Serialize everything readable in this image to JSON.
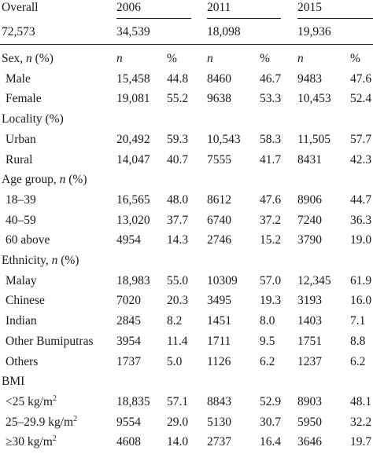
{
  "header": {
    "overall_label": "Overall",
    "overall_n": "72,573",
    "years": [
      "2006",
      "2011",
      "2015"
    ],
    "year_counts": [
      "34,539",
      "18,098",
      "19,936"
    ]
  },
  "col_heads": {
    "n": "n",
    "pct": "%"
  },
  "sections": [
    {
      "title": "Sex,",
      "title_italic": "n",
      "title_suffix": "(%)",
      "rows": [
        {
          "label": "Male",
          "label_sup": "",
          "values": [
            "15,458",
            "44.8",
            "8460",
            "46.7",
            "9483",
            "47.6"
          ]
        },
        {
          "label": "Female",
          "label_sup": "",
          "values": [
            "19,081",
            "55.2",
            "9638",
            "53.3",
            "10,453",
            "52.4"
          ]
        }
      ]
    },
    {
      "title": "Locality (%)",
      "title_italic": "",
      "title_suffix": "",
      "rows": [
        {
          "label": "Urban",
          "label_sup": "",
          "values": [
            "20,492",
            "59.3",
            "10,543",
            "58.3",
            "11,505",
            "57.7"
          ]
        },
        {
          "label": "Rural",
          "label_sup": "",
          "values": [
            "14,047",
            "40.7",
            "7555",
            "41.7",
            "8431",
            "42.3"
          ]
        }
      ]
    },
    {
      "title": "Age group,",
      "title_italic": "n",
      "title_suffix": "(%)",
      "rows": [
        {
          "label": "18–39",
          "label_sup": "",
          "values": [
            "16,565",
            "48.0",
            "8612",
            "47.6",
            "8906",
            "44.7"
          ]
        },
        {
          "label": "40–59",
          "label_sup": "",
          "values": [
            "13,020",
            "37.7",
            "6740",
            "37.2",
            "7240",
            "36.3"
          ]
        },
        {
          "label": "60 above",
          "label_sup": "",
          "values": [
            "4954",
            "14.3",
            "2746",
            "15.2",
            "3790",
            "19.0"
          ]
        }
      ]
    },
    {
      "title": "Ethnicity,",
      "title_italic": "n",
      "title_suffix": "(%)",
      "rows": [
        {
          "label": "Malay",
          "label_sup": "",
          "values": [
            "18,983",
            "55.0",
            "10309",
            "57.0",
            "12,345",
            "61.9"
          ]
        },
        {
          "label": "Chinese",
          "label_sup": "",
          "values": [
            "7020",
            "20.3",
            "3495",
            "19.3",
            "3193",
            "16.0"
          ]
        },
        {
          "label": "Indian",
          "label_sup": "",
          "values": [
            "2845",
            "8.2",
            "1451",
            "8.0",
            "1403",
            "7.1"
          ]
        },
        {
          "label": "Other Bumiputras",
          "label_sup": "",
          "values": [
            "3954",
            "11.4",
            "1711",
            "9.5",
            "1751",
            "8.8"
          ]
        },
        {
          "label": "Others",
          "label_sup": "",
          "values": [
            "1737",
            "5.0",
            "1126",
            "6.2",
            "1237",
            "6.2"
          ]
        }
      ]
    },
    {
      "title": "BMI",
      "title_italic": "",
      "title_suffix": "",
      "rows": [
        {
          "label": "<25 kg/m",
          "label_sup": "2",
          "values": [
            "18,835",
            "57.1",
            "8843",
            "52.9",
            "8903",
            "48.1"
          ]
        },
        {
          "label": "25–29.9 kg/m",
          "label_sup": "2",
          "values": [
            "9554",
            "29.0",
            "5130",
            "30.7",
            "5950",
            "32.2"
          ]
        },
        {
          "label": "≥30 kg/m",
          "label_sup": "2",
          "values": [
            "4608",
            "14.0",
            "2737",
            "16.4",
            "3646",
            "19.7"
          ]
        }
      ]
    }
  ]
}
